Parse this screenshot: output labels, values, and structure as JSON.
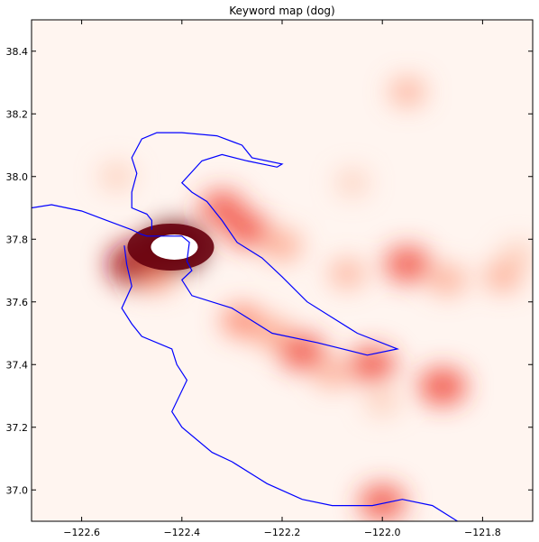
{
  "chart_data": {
    "type": "heatmap",
    "title": "Keyword map (dog)",
    "xlabel": "",
    "ylabel": "",
    "xlim": [
      -122.7,
      -121.7
    ],
    "ylim": [
      36.9,
      38.5
    ],
    "xticks": [
      -122.6,
      -122.4,
      -122.2,
      -122.0,
      -121.8
    ],
    "yticks": [
      37.0,
      37.2,
      37.4,
      37.6,
      37.8,
      38.0,
      38.2,
      38.4
    ],
    "xtick_labels": [
      "−122.6",
      "−122.4",
      "−122.2",
      "−122.0",
      "−121.8"
    ],
    "ytick_labels": [
      "37.0",
      "37.2",
      "37.4",
      "37.6",
      "37.8",
      "38.0",
      "38.2",
      "38.4"
    ],
    "grid": false,
    "colormap": "Reds",
    "colors": {
      "axes": "#000000",
      "coastline": "#0000ff",
      "background": "#fff5f0",
      "peak": "#67000d"
    },
    "hotspots": [
      {
        "lon": -122.415,
        "lat": 37.775,
        "intensity": 1.0
      },
      {
        "lon": -122.49,
        "lat": 37.72,
        "intensity": 0.9
      },
      {
        "lon": -122.45,
        "lat": 37.68,
        "intensity": 0.35
      },
      {
        "lon": -122.32,
        "lat": 37.9,
        "intensity": 0.5
      },
      {
        "lon": -122.27,
        "lat": 37.83,
        "intensity": 0.5
      },
      {
        "lon": -122.2,
        "lat": 37.78,
        "intensity": 0.35
      },
      {
        "lon": -122.28,
        "lat": 37.54,
        "intensity": 0.4
      },
      {
        "lon": -122.22,
        "lat": 37.5,
        "intensity": 0.35
      },
      {
        "lon": -122.16,
        "lat": 37.44,
        "intensity": 0.55
      },
      {
        "lon": -122.02,
        "lat": 37.4,
        "intensity": 0.55
      },
      {
        "lon": -121.88,
        "lat": 37.33,
        "intensity": 0.6
      },
      {
        "lon": -121.95,
        "lat": 37.72,
        "intensity": 0.55
      },
      {
        "lon": -121.87,
        "lat": 37.67,
        "intensity": 0.3
      },
      {
        "lon": -121.76,
        "lat": 37.68,
        "intensity": 0.3
      },
      {
        "lon": -122.07,
        "lat": 37.69,
        "intensity": 0.25
      },
      {
        "lon": -122.0,
        "lat": 36.96,
        "intensity": 0.55
      },
      {
        "lon": -121.95,
        "lat": 38.27,
        "intensity": 0.25
      },
      {
        "lon": -122.53,
        "lat": 38.0,
        "intensity": 0.2
      },
      {
        "lon": -122.06,
        "lat": 37.98,
        "intensity": 0.15
      },
      {
        "lon": -122.1,
        "lat": 37.37,
        "intensity": 0.25
      },
      {
        "lon": -122.0,
        "lat": 37.28,
        "intensity": 0.2
      },
      {
        "lon": -121.73,
        "lat": 37.75,
        "intensity": 0.2
      }
    ],
    "coastline": [
      [
        -122.7,
        37.9
      ],
      [
        -122.66,
        37.91
      ],
      [
        -122.6,
        37.89
      ],
      [
        -122.55,
        37.86
      ],
      [
        -122.5,
        37.83
      ],
      [
        -122.48,
        37.815
      ],
      [
        -122.47,
        37.81
      ],
      [
        -122.45,
        37.81
      ],
      [
        -122.4,
        37.81
      ],
      [
        -122.385,
        37.79
      ],
      [
        -122.39,
        37.73
      ],
      [
        -122.38,
        37.7
      ],
      [
        -122.4,
        37.67
      ],
      [
        -122.38,
        37.62
      ],
      [
        -122.3,
        37.58
      ],
      [
        -122.22,
        37.5
      ],
      [
        -122.13,
        37.47
      ],
      [
        -122.03,
        37.43
      ],
      [
        -121.97,
        37.45
      ],
      [
        -122.05,
        37.5
      ],
      [
        -122.1,
        37.55
      ],
      [
        -122.15,
        37.6
      ],
      [
        -122.2,
        37.68
      ],
      [
        -122.24,
        37.74
      ],
      [
        -122.29,
        37.79
      ],
      [
        -122.32,
        37.86
      ],
      [
        -122.35,
        37.92
      ],
      [
        -122.38,
        37.95
      ],
      [
        -122.4,
        37.98
      ],
      [
        -122.36,
        38.05
      ],
      [
        -122.32,
        38.07
      ],
      [
        -122.27,
        38.05
      ],
      [
        -122.21,
        38.03
      ],
      [
        -122.2,
        38.04
      ],
      [
        -122.26,
        38.06
      ],
      [
        -122.28,
        38.1
      ],
      [
        -122.33,
        38.13
      ],
      [
        -122.4,
        38.14
      ],
      [
        -122.45,
        38.14
      ],
      [
        -122.48,
        38.12
      ],
      [
        -122.5,
        38.06
      ],
      [
        -122.49,
        38.01
      ],
      [
        -122.5,
        37.95
      ],
      [
        -122.5,
        37.9
      ],
      [
        -122.47,
        37.88
      ],
      [
        -122.46,
        37.86
      ],
      [
        -122.46,
        37.83
      ]
    ],
    "coastline_south": [
      [
        -122.515,
        37.78
      ],
      [
        -122.51,
        37.72
      ],
      [
        -122.5,
        37.65
      ],
      [
        -122.52,
        37.58
      ],
      [
        -122.5,
        37.53
      ],
      [
        -122.48,
        37.49
      ],
      [
        -122.42,
        37.45
      ],
      [
        -122.41,
        37.4
      ],
      [
        -122.39,
        37.35
      ],
      [
        -122.42,
        37.25
      ],
      [
        -122.4,
        37.2
      ],
      [
        -122.34,
        37.12
      ],
      [
        -122.3,
        37.09
      ],
      [
        -122.23,
        37.02
      ],
      [
        -122.16,
        36.97
      ],
      [
        -122.1,
        36.95
      ],
      [
        -122.02,
        36.95
      ],
      [
        -121.96,
        36.97
      ],
      [
        -121.9,
        36.95
      ],
      [
        -121.85,
        36.9
      ]
    ]
  }
}
